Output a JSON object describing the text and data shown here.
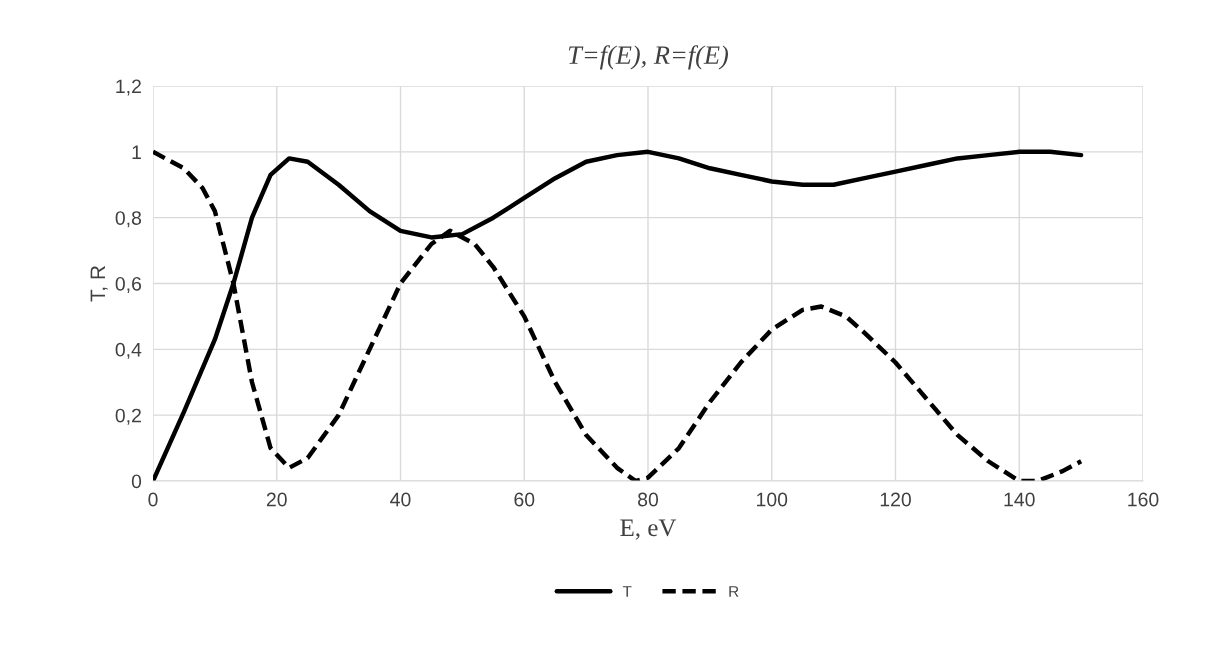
{
  "chart_data": {
    "type": "line",
    "title": "T=f(E), R=f(E)",
    "xlabel": "E, eV",
    "ylabel": "T, R",
    "xlim": [
      0,
      160
    ],
    "xticks": [
      0,
      20,
      40,
      60,
      80,
      100,
      120,
      140,
      160
    ],
    "ylim": [
      0,
      1.2
    ],
    "yticks": [
      0,
      {
        "value": 0.2,
        "label": "0,2"
      },
      {
        "value": 0.4,
        "label": "0,4"
      },
      {
        "value": 0.6,
        "label": "0,6"
      },
      {
        "value": 0.8,
        "label": "0,8"
      },
      1,
      {
        "value": 1.2,
        "label": "1,2"
      }
    ],
    "grid": true,
    "legend": "bottom",
    "marker": "none",
    "series": [
      {
        "name": "T",
        "color": "#000000",
        "line_style": "solid",
        "x": [
          0,
          5,
          10,
          13,
          16,
          19,
          22,
          25,
          30,
          35,
          40,
          45,
          50,
          55,
          60,
          65,
          70,
          75,
          80,
          85,
          90,
          95,
          100,
          105,
          110,
          115,
          120,
          125,
          130,
          135,
          140,
          145,
          150
        ],
        "values": [
          0,
          0.21,
          0.43,
          0.6,
          0.8,
          0.93,
          0.98,
          0.97,
          0.9,
          0.82,
          0.76,
          0.74,
          0.75,
          0.8,
          0.86,
          0.92,
          0.97,
          0.99,
          1.0,
          0.98,
          0.95,
          0.93,
          0.91,
          0.9,
          0.9,
          0.92,
          0.94,
          0.96,
          0.98,
          0.99,
          1.0,
          1.0,
          0.99
        ]
      },
      {
        "name": "R",
        "color": "#000000",
        "line_style": "dashed",
        "x": [
          0,
          5,
          8,
          10,
          13,
          16,
          19,
          22,
          25,
          30,
          35,
          40,
          45,
          48,
          52,
          55,
          60,
          65,
          70,
          75,
          78,
          80,
          85,
          90,
          95,
          100,
          105,
          108,
          112,
          115,
          120,
          125,
          130,
          135,
          140,
          143,
          147,
          150
        ],
        "values": [
          1.0,
          0.95,
          0.89,
          0.82,
          0.6,
          0.3,
          0.1,
          0.04,
          0.07,
          0.2,
          0.4,
          0.6,
          0.72,
          0.76,
          0.72,
          0.65,
          0.5,
          0.3,
          0.14,
          0.04,
          0.0,
          0.01,
          0.1,
          0.24,
          0.36,
          0.46,
          0.52,
          0.53,
          0.5,
          0.45,
          0.36,
          0.25,
          0.14,
          0.06,
          0.0,
          0.0,
          0.03,
          0.06
        ]
      }
    ]
  }
}
